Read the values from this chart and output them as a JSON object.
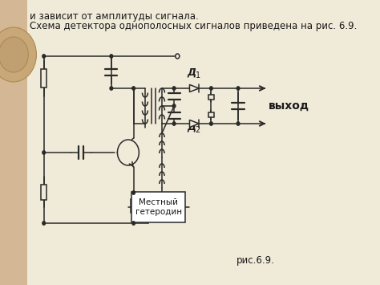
{
  "bg_color": "#f0ead8",
  "left_panel_color": "#d4b896",
  "text_line1": "и зависит от амплитуды сигнала.",
  "text_line2": "Схема детектора однополосных сигналов приведена на рис. 6.9.",
  "label_d1": "Д",
  "label_d1_sub": "1",
  "label_d2": "Д",
  "label_d2_sub": "2",
  "label_output": "выход",
  "label_caption": "рис.6.9.",
  "label_local": "Местный\nгетеродин",
  "line_color": "#2a2a2a",
  "text_color": "#1a1a1a",
  "font_size_main": 8.5,
  "font_size_label": 10
}
